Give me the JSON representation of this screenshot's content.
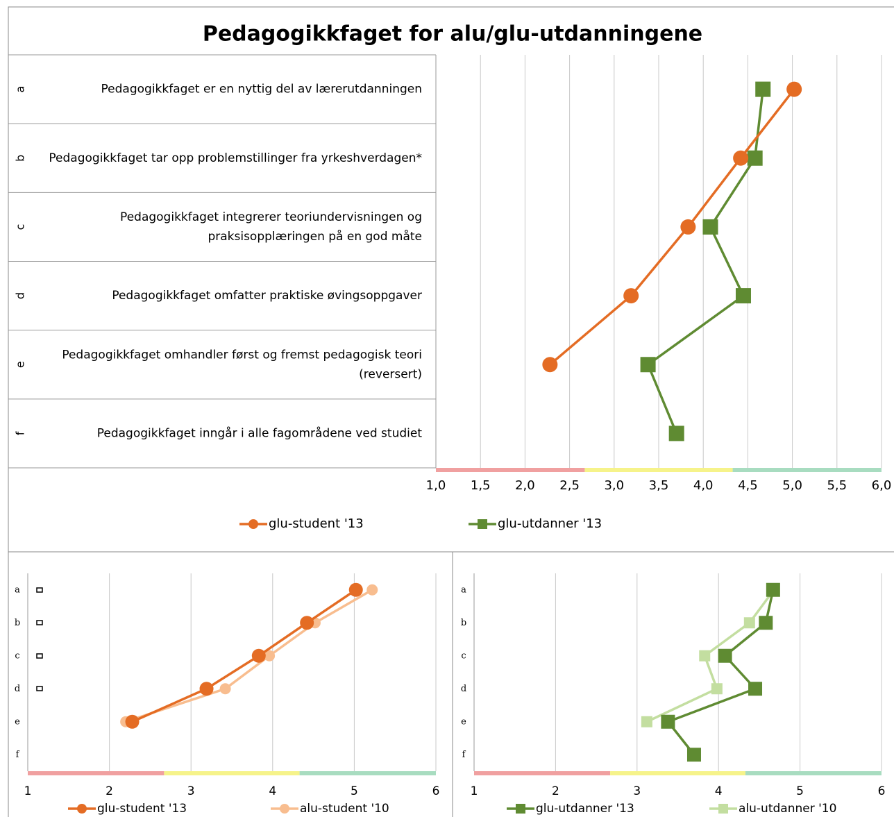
{
  "chart_data": [
    {
      "type": "line",
      "title": "Pedagogikkfaget for alu/glu-utdanningene",
      "categories": [
        "a",
        "b",
        "c",
        "d",
        "e",
        "f"
      ],
      "statements": [
        [
          "Pedagogikkfaget er en nyttig del av lærerutdanningen"
        ],
        [
          "Pedagogikkfaget tar opp problemstillinger fra yrkeshverdagen*"
        ],
        [
          "Pedagogikkfaget integrerer teoriundervisningen og",
          "praksisopplæringen på en god måte"
        ],
        [
          "Pedagogikkfaget omfatter praktiske øvingsoppgaver"
        ],
        [
          "Pedagogikkfaget omhandler først og fremst pedagogisk teori",
          "(reversert)"
        ],
        [
          "Pedagogikkfaget inngår i alle fagområdene ved studiet"
        ]
      ],
      "series": [
        {
          "name": "glu-student '13",
          "color": "#e46c24",
          "marker": "circle",
          "values": [
            5.02,
            4.42,
            3.83,
            3.19,
            2.28,
            null
          ]
        },
        {
          "name": "glu-utdanner '13",
          "color": "#5f8b32",
          "marker": "square",
          "values": [
            4.67,
            4.58,
            4.08,
            4.45,
            3.38,
            3.7
          ]
        }
      ],
      "xlim": [
        1,
        6
      ],
      "xticks": [
        {
          "value": 1,
          "label": "1,0"
        },
        {
          "value": 1.5,
          "label": "1,5"
        },
        {
          "value": 2,
          "label": "2,0"
        },
        {
          "value": 2.5,
          "label": "2,5"
        },
        {
          "value": 3,
          "label": "3,0"
        },
        {
          "value": 3.5,
          "label": "3,5"
        },
        {
          "value": 4,
          "label": "4,0"
        },
        {
          "value": 4.5,
          "label": "4,5"
        },
        {
          "value": 5,
          "label": "5,0"
        },
        {
          "value": 5.5,
          "label": "5,5"
        },
        {
          "value": 6,
          "label": "6,0"
        }
      ],
      "bands": [
        {
          "from": 1,
          "to": 2.67,
          "color": "#f0a0a0"
        },
        {
          "from": 2.67,
          "to": 4.33,
          "color": "#f6f38a"
        },
        {
          "from": 4.33,
          "to": 6,
          "color": "#a8dcc0"
        }
      ],
      "grid": true
    },
    {
      "type": "line",
      "categories": [
        "a",
        "b",
        "c",
        "d",
        "e",
        "f"
      ],
      "series": [
        {
          "name": "glu-student '13",
          "color": "#e46c24",
          "marker": "circle",
          "values": [
            5.02,
            4.42,
            3.83,
            3.19,
            2.28,
            null
          ]
        },
        {
          "name": "alu-student '10",
          "color": "#f8bd8f",
          "marker": "circle",
          "values": [
            5.22,
            4.52,
            3.96,
            3.42,
            2.2,
            null
          ]
        }
      ],
      "xlim": [
        1,
        6
      ],
      "xticks": [
        1,
        2,
        3,
        4,
        5,
        6
      ],
      "bands": [
        {
          "from": 1,
          "to": 2.67,
          "color": "#f0a0a0"
        },
        {
          "from": 2.67,
          "to": 4.33,
          "color": "#f6f38a"
        },
        {
          "from": 4.33,
          "to": 6,
          "color": "#a8dcc0"
        }
      ],
      "grid": true
    },
    {
      "type": "line",
      "categories": [
        "a",
        "b",
        "c",
        "d",
        "e",
        "f"
      ],
      "series": [
        {
          "name": "glu-utdanner '13",
          "color": "#5f8b32",
          "marker": "square",
          "values": [
            4.67,
            4.58,
            4.08,
            4.45,
            3.38,
            3.7
          ]
        },
        {
          "name": "alu-utdanner '10",
          "color": "#c3dea0",
          "marker": "square",
          "values": [
            4.68,
            4.38,
            3.83,
            3.98,
            3.12,
            null
          ]
        }
      ],
      "xlim": [
        1,
        6
      ],
      "xticks": [
        1,
        2,
        3,
        4,
        5,
        6
      ],
      "bands": [
        {
          "from": 1,
          "to": 2.67,
          "color": "#f0a0a0"
        },
        {
          "from": 2.67,
          "to": 4.33,
          "color": "#f6f38a"
        },
        {
          "from": 4.33,
          "to": 6,
          "color": "#a8dcc0"
        }
      ],
      "grid": true
    }
  ]
}
